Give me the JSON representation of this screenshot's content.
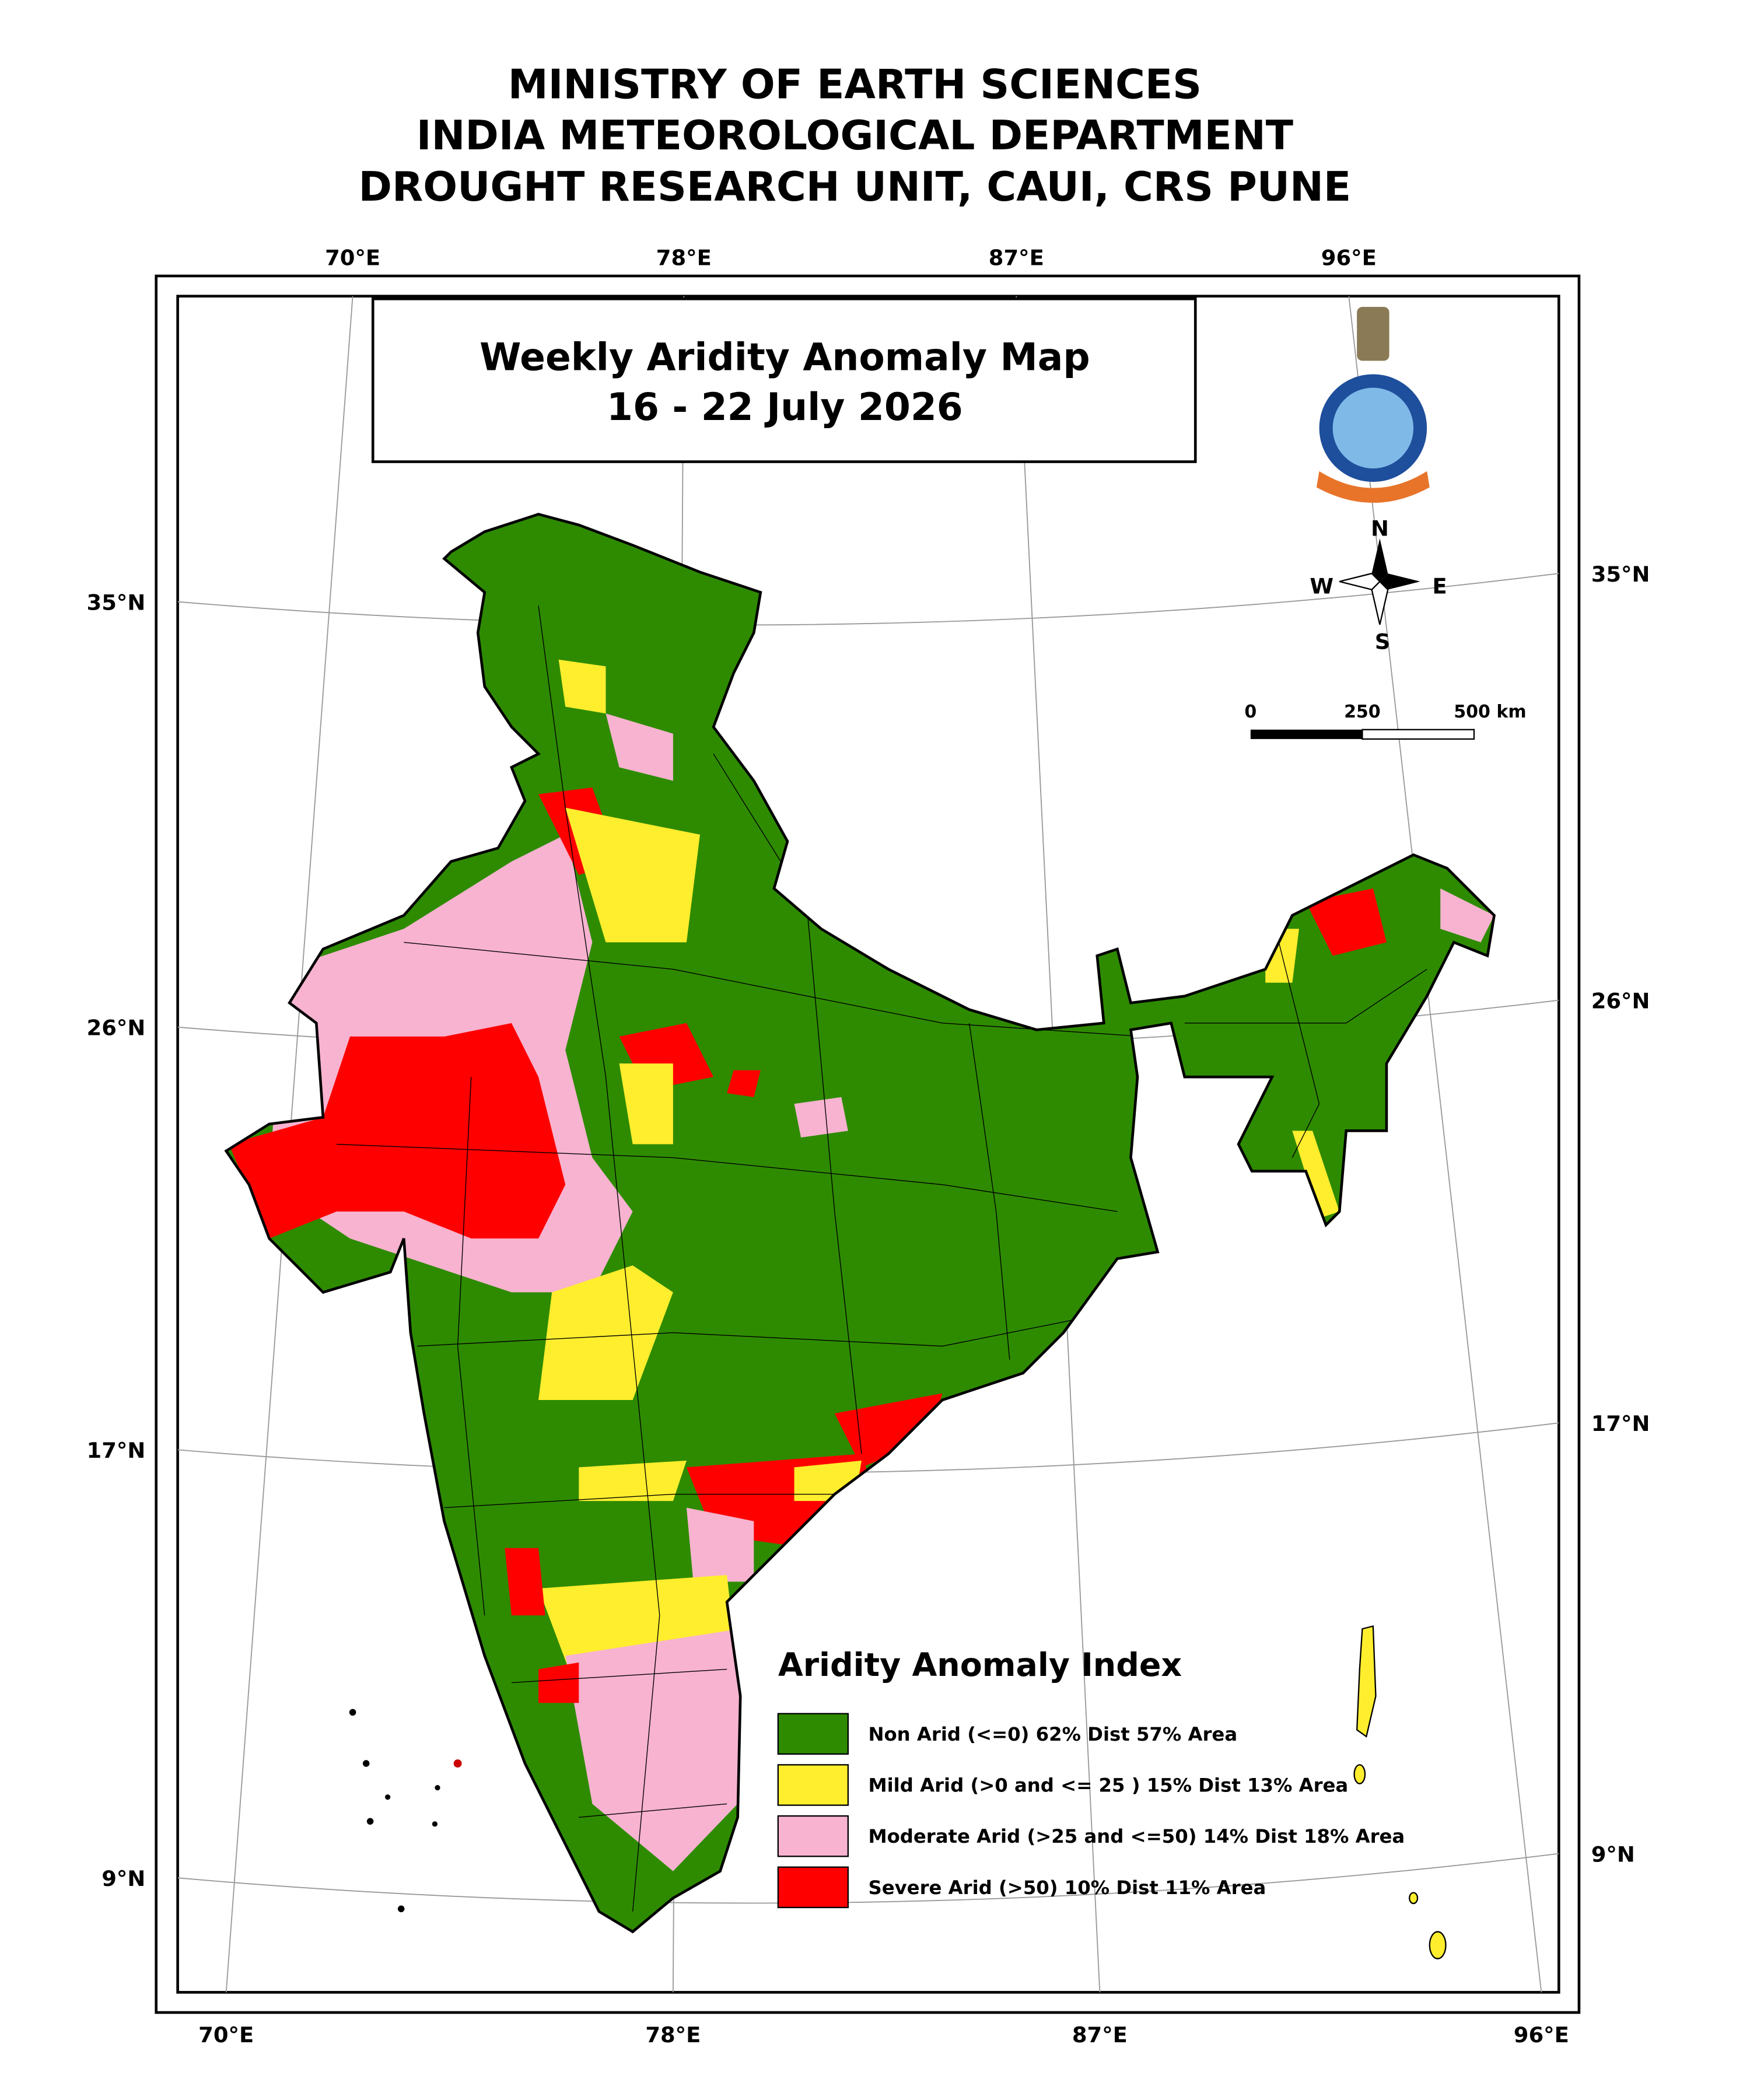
{
  "header": {
    "lines": [
      "MINISTRY OF EARTH SCIENCES",
      "INDIA METEOROLOGICAL DEPARTMENT",
      "DROUGHT RESEARCH UNIT, CAUI, CRS PUNE"
    ]
  },
  "map": {
    "title": "Weekly Aridity Anomaly Map",
    "period": "16 - 22 July 2026",
    "top_longitude_labels": [
      "70°E",
      "78°E",
      "87°E",
      "96°E"
    ],
    "bottom_longitude_labels": [
      "70°E",
      "78°E",
      "87°E",
      "96°E"
    ],
    "left_latitude_labels": [
      "35°N",
      "26°N",
      "17°N",
      "9°N"
    ],
    "right_latitude_labels": [
      "35°N",
      "26°N",
      "17°N",
      "9°N"
    ],
    "compass": {
      "north": "N",
      "south": "S",
      "east": "E",
      "west": "W"
    },
    "scale_bar": {
      "labels": [
        "0",
        "250",
        "500 km"
      ]
    },
    "legend": {
      "title": "Aridity Anomaly Index",
      "items": [
        {
          "label": "Non Arid (<=0) 62% Dist 57% Area",
          "color": "#2e8b00"
        },
        {
          "label": "Mild Arid (>0 and <= 25 ) 15% Dist  13% Area",
          "color": "#ffee2e"
        },
        {
          "label": "Moderate Arid (>25 and <=50) 14% Dist 18% Area",
          "color": "#f7b3d0"
        },
        {
          "label": "Severe Arid (>50) 10% Dist  11% Area",
          "color": "#ff0000"
        }
      ]
    }
  }
}
